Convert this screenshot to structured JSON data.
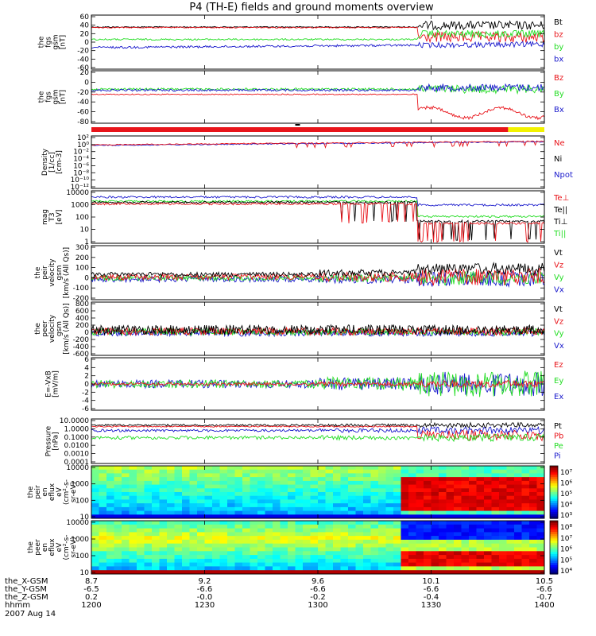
{
  "title": "P4 (TH-E) fields and ground moments overview",
  "colors": {
    "black": "#000000",
    "red": "#e8141a",
    "green": "#22dd22",
    "blue": "#1a1acc",
    "yellow": "#f2f200",
    "orange": "#ff9900"
  },
  "chart_data": [
    {
      "id": "panel-fgs-gsm",
      "type": "line",
      "ylabel_lines": [
        "the",
        "fgs",
        "gsm",
        "[nT]"
      ],
      "yticks": [
        "60",
        "40",
        "20",
        "0",
        "-20",
        "-40",
        "-60"
      ],
      "legend": [
        {
          "label": "Bt",
          "color": "black"
        },
        {
          "label": "bz",
          "color": "red"
        },
        {
          "label": "by",
          "color": "green"
        },
        {
          "label": "bx",
          "color": "blue"
        }
      ]
    },
    {
      "id": "panel-fgs-gsm-boost",
      "type": "line",
      "ylabel_lines": [
        "the",
        "fgs",
        "gsm",
        "[nT]"
      ],
      "yticks": [
        "20",
        "0",
        "-20",
        "-40",
        "-60",
        "-80"
      ],
      "legend": [
        {
          "label": "Bz",
          "color": "red"
        },
        {
          "label": "By",
          "color": "green"
        },
        {
          "label": "Bx",
          "color": "blue"
        }
      ]
    },
    {
      "id": "panel-density",
      "type": "line",
      "ylabel_lines": [
        "Density",
        "[1/cc]",
        "[cm-3]"
      ],
      "yticks": [
        "10²",
        "10⁰",
        "10⁻²",
        "10⁻⁴",
        "10⁻⁶",
        "10⁻⁸",
        "10⁻¹⁰",
        "10⁻¹²"
      ],
      "legend": [
        {
          "label": "Ne",
          "color": "red"
        },
        {
          "label": "Ni",
          "color": "black"
        },
        {
          "label": "Npot",
          "color": "blue"
        }
      ]
    },
    {
      "id": "panel-temperature",
      "type": "line",
      "ylabel_lines": [
        "mag",
        "T3",
        "[eV]"
      ],
      "yticks": [
        "10000",
        "1000",
        "100",
        "10",
        "1"
      ],
      "legend": [
        {
          "label": "Te⊥",
          "color": "red"
        },
        {
          "label": "Te||",
          "color": "black"
        },
        {
          "label": "Ti⊥",
          "color": "black"
        },
        {
          "label": "Ti||",
          "color": "green"
        }
      ]
    },
    {
      "id": "panel-velocity-peir",
      "type": "line",
      "ylabel_lines": [
        "the",
        "peir",
        "velocity",
        "gsm",
        "[km/s (All Qs)]"
      ],
      "yticks": [
        "300",
        "200",
        "100",
        "0",
        "-100",
        "-200"
      ],
      "legend": [
        {
          "label": "Vt",
          "color": "black"
        },
        {
          "label": "Vz",
          "color": "red"
        },
        {
          "label": "Vy",
          "color": "green"
        },
        {
          "label": "Vx",
          "color": "blue"
        }
      ]
    },
    {
      "id": "panel-velocity-peer",
      "type": "line",
      "ylabel_lines": [
        "the",
        "peer",
        "velocity",
        "gsm",
        "[km/s (All Qs)]"
      ],
      "yticks": [
        "800",
        "600",
        "400",
        "200",
        "0",
        "-200",
        "-400",
        "-600"
      ],
      "legend": [
        {
          "label": "Vt",
          "color": "black"
        },
        {
          "label": "Vz",
          "color": "red"
        },
        {
          "label": "Vy",
          "color": "green"
        },
        {
          "label": "Vx",
          "color": "blue"
        }
      ]
    },
    {
      "id": "panel-efield",
      "type": "line",
      "ylabel_lines": [
        "E=-VxB",
        "[mV/m]"
      ],
      "yticks": [
        "6",
        "4",
        "2",
        "0",
        "-2",
        "-4",
        "-6"
      ],
      "legend": [
        {
          "label": "Ez",
          "color": "red"
        },
        {
          "label": "Ey",
          "color": "green"
        },
        {
          "label": "Ex",
          "color": "blue"
        }
      ]
    },
    {
      "id": "panel-pressure",
      "type": "line",
      "ylabel_lines": [
        "Pressure",
        "[nPa]"
      ],
      "yticks": [
        "10.0000",
        "1.0000",
        "0.1000",
        "0.0100",
        "0.0010",
        "0.0001"
      ],
      "legend": [
        {
          "label": "Pt",
          "color": "black"
        },
        {
          "label": "Pb",
          "color": "red"
        },
        {
          "label": "Pe",
          "color": "green"
        },
        {
          "label": "Pi",
          "color": "blue"
        }
      ]
    },
    {
      "id": "panel-peir-spectrogram",
      "type": "heatmap",
      "ylabel_lines": [
        "the",
        "peir",
        "en",
        "eflux",
        "eV",
        "(cm²-s-",
        "sr-eV)"
      ],
      "yticks": [
        "10000",
        "1000",
        "100",
        "10"
      ],
      "colorbar_ticks": [
        "10⁷",
        "10⁶",
        "10⁵",
        "10⁴",
        "10³"
      ],
      "colorbar_range": [
        1000,
        10000000
      ]
    },
    {
      "id": "panel-peer-spectrogram",
      "type": "heatmap",
      "ylabel_lines": [
        "the",
        "peer",
        "en",
        "eflux",
        "eV",
        "(cm²-s-",
        "sr-eV)"
      ],
      "yticks": [
        "10000",
        "1000",
        "100",
        "10"
      ],
      "colorbar_ticks": [
        "10⁸",
        "10⁷",
        "10⁶",
        "10⁵",
        "10⁴"
      ],
      "colorbar_range": [
        10000,
        100000000
      ]
    }
  ],
  "axis_rows": [
    {
      "label": "the_X-GSM",
      "values": [
        "8.7",
        "9.2",
        "9.6",
        "10.1",
        "10.5"
      ]
    },
    {
      "label": "the_Y-GSM",
      "values": [
        "-6.5",
        "-6.6",
        "-6.6",
        "-6.6",
        "-6.6"
      ]
    },
    {
      "label": "the_Z-GSM",
      "values": [
        "0.2",
        "-0.0",
        "-0.2",
        "-0.4",
        "-0.7"
      ]
    },
    {
      "label": "hhmm",
      "values": [
        "1200",
        "1230",
        "1300",
        "1330",
        "1400"
      ]
    }
  ],
  "date": "2007 Aug 14"
}
